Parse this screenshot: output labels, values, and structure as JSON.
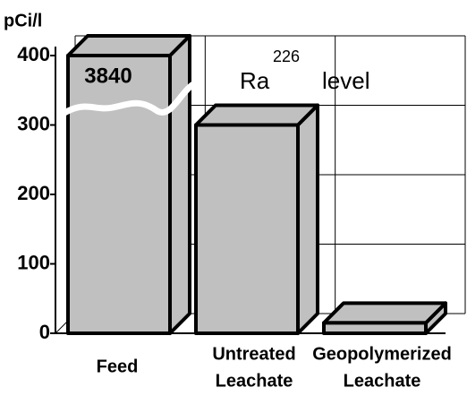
{
  "chart_data": {
    "type": "bar3d",
    "title": {
      "base": "Ra",
      "superscript": "226",
      "suffix": "level"
    },
    "y_label": "pCi/l",
    "categories": [
      [
        "Feed"
      ],
      [
        "Untreated",
        "Leachate"
      ],
      [
        "Geopolymerized",
        "Leachate"
      ]
    ],
    "values": [
      3840,
      300,
      15
    ],
    "color": "#c0c0c0",
    "ylim": [
      0,
      400
    ],
    "yticks": [
      0,
      100,
      200,
      300,
      400
    ],
    "grid": true,
    "axis_break": true
  }
}
